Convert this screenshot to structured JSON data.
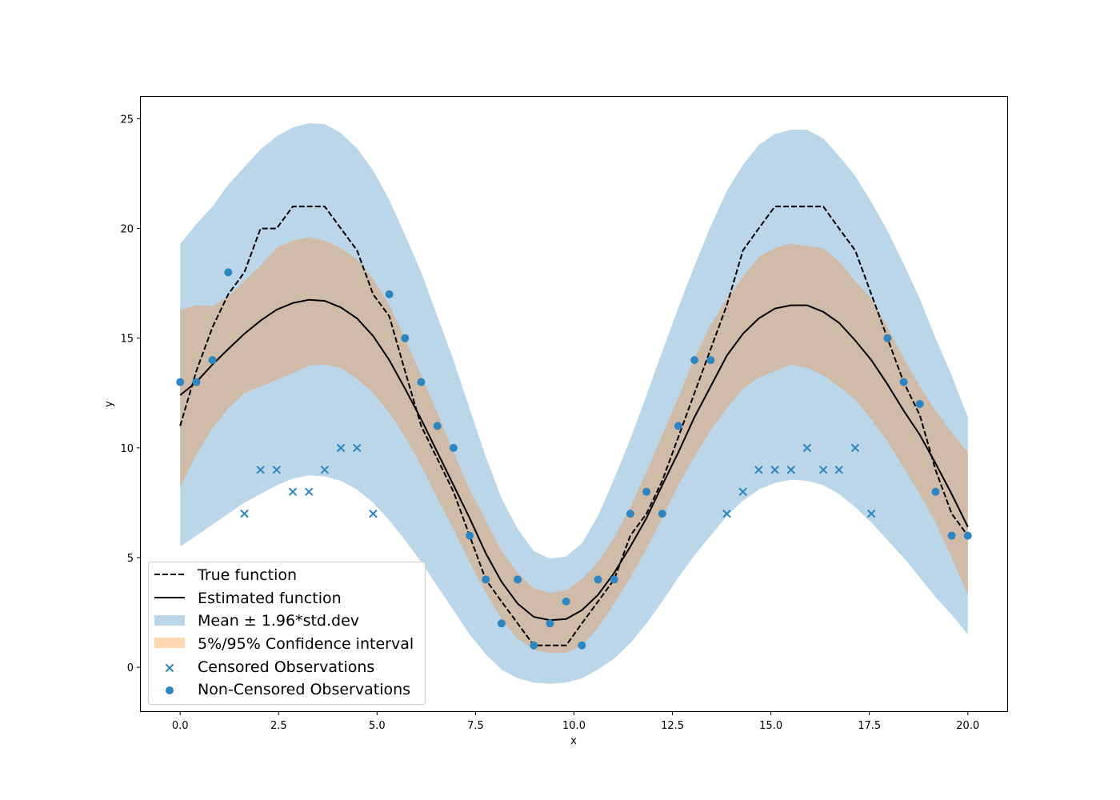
{
  "chart_data": {
    "type": "line",
    "title": "",
    "xlabel": "x",
    "ylabel": "y",
    "xlim": [
      -1.0,
      21.0
    ],
    "ylim": [
      -2.0,
      26.0
    ],
    "x_ticks": [
      "0.0",
      "2.5",
      "5.0",
      "7.5",
      "10.0",
      "12.5",
      "15.0",
      "17.5",
      "20.0"
    ],
    "y_ticks": [
      "0",
      "5",
      "10",
      "15",
      "20",
      "25"
    ],
    "legend_position": "lower-left",
    "colors": {
      "true_function": "#000000",
      "estimated_function": "#000000",
      "band_outer": "#bad6e8",
      "band_inner": "#cfbba8",
      "legend_orange_patch": "#ffd7b0",
      "observations": "#2e86c1"
    },
    "legend": [
      {
        "label": "True function",
        "style": "dashed-line"
      },
      {
        "label": "Estimated function",
        "style": "solid-line"
      },
      {
        "label": "Mean ± 1.96*std.dev",
        "style": "blue-patch"
      },
      {
        "label": "5%/95% Confidence interval",
        "style": "orange-patch"
      },
      {
        "label": "Censored Observations",
        "style": "x-marker"
      },
      {
        "label": "Non-Censored Observations",
        "style": "dot-marker"
      }
    ],
    "x": [
      0.0,
      0.41,
      0.82,
      1.22,
      1.63,
      2.04,
      2.45,
      2.86,
      3.27,
      3.67,
      4.08,
      4.49,
      4.9,
      5.31,
      5.71,
      6.12,
      6.53,
      6.94,
      7.35,
      7.76,
      8.16,
      8.57,
      8.98,
      9.39,
      9.8,
      10.2,
      10.61,
      11.02,
      11.43,
      11.84,
      12.24,
      12.65,
      13.06,
      13.47,
      13.88,
      14.29,
      14.69,
      15.1,
      15.51,
      15.92,
      16.33,
      16.73,
      17.14,
      17.55,
      17.96,
      18.37,
      18.78,
      19.18,
      19.59,
      20.0
    ],
    "series": [
      {
        "name": "True function",
        "values": [
          11.0,
          13.5,
          15.5,
          17.0,
          18.0,
          20.0,
          20.0,
          21.0,
          21.0,
          21.0,
          20.0,
          19.0,
          17.0,
          16.0,
          13.5,
          11.0,
          9.5,
          8.0,
          6.0,
          4.0,
          3.0,
          2.0,
          1.0,
          1.0,
          1.0,
          2.0,
          3.0,
          4.0,
          6.0,
          7.0,
          8.5,
          10.5,
          12.5,
          14.5,
          16.5,
          19.0,
          20.0,
          21.0,
          21.0,
          21.0,
          21.0,
          20.0,
          19.0,
          17.0,
          15.0,
          13.0,
          11.5,
          9.0,
          7.0,
          6.0
        ]
      },
      {
        "name": "Estimated function",
        "values": [
          12.4,
          13.0,
          13.8,
          14.5,
          15.2,
          15.8,
          16.3,
          16.6,
          16.75,
          16.7,
          16.4,
          15.9,
          15.1,
          14.0,
          12.7,
          11.3,
          9.8,
          8.3,
          6.8,
          5.2,
          3.9,
          2.9,
          2.3,
          2.15,
          2.2,
          2.6,
          3.3,
          4.3,
          5.5,
          6.8,
          8.3,
          9.8,
          11.4,
          12.8,
          14.2,
          15.2,
          15.9,
          16.35,
          16.5,
          16.5,
          16.2,
          15.7,
          14.9,
          14.0,
          12.9,
          11.7,
          10.6,
          9.3,
          7.9,
          6.4
        ]
      },
      {
        "name": "Mean ± 1.96*std.dev",
        "lower": [
          5.5,
          6.0,
          6.5,
          7.0,
          7.5,
          7.9,
          8.3,
          8.6,
          8.75,
          8.7,
          8.5,
          8.1,
          7.5,
          6.7,
          5.8,
          4.8,
          3.7,
          2.6,
          1.5,
          0.6,
          -0.1,
          -0.5,
          -0.7,
          -0.75,
          -0.7,
          -0.5,
          -0.1,
          0.4,
          1.1,
          2.0,
          3.0,
          4.1,
          5.1,
          6.0,
          6.9,
          7.6,
          8.1,
          8.4,
          8.55,
          8.5,
          8.3,
          7.9,
          7.3,
          6.6,
          5.8,
          5.0,
          4.1,
          3.2,
          2.4,
          1.5
        ],
        "upper": [
          19.3,
          20.2,
          21.0,
          22.0,
          22.8,
          23.6,
          24.2,
          24.6,
          24.8,
          24.75,
          24.35,
          23.65,
          22.65,
          21.3,
          19.7,
          18.0,
          16.0,
          14.0,
          11.8,
          9.6,
          7.7,
          6.3,
          5.3,
          4.95,
          5.05,
          5.65,
          6.9,
          8.6,
          10.4,
          12.4,
          14.4,
          16.4,
          18.3,
          20.1,
          21.7,
          22.9,
          23.8,
          24.3,
          24.5,
          24.5,
          24.1,
          23.3,
          22.4,
          21.2,
          19.9,
          18.4,
          16.8,
          15.0,
          13.3,
          11.4
        ]
      },
      {
        "name": "5%/95% Confidence interval",
        "lower": [
          8.2,
          9.7,
          10.9,
          11.8,
          12.5,
          12.8,
          13.1,
          13.4,
          13.75,
          13.8,
          13.65,
          13.15,
          12.5,
          11.6,
          10.5,
          9.2,
          7.7,
          6.3,
          4.8,
          3.4,
          2.2,
          1.3,
          0.8,
          0.65,
          0.65,
          1.0,
          1.8,
          2.9,
          4.1,
          5.4,
          6.8,
          8.3,
          9.6,
          10.8,
          11.8,
          12.7,
          13.2,
          13.5,
          13.8,
          13.65,
          13.3,
          12.8,
          12.2,
          11.3,
          10.3,
          9.1,
          7.9,
          6.6,
          5.0,
          3.3
        ],
        "upper": [
          16.3,
          16.5,
          16.45,
          16.9,
          17.6,
          18.3,
          19.1,
          19.45,
          19.6,
          19.45,
          19.1,
          18.6,
          17.7,
          16.5,
          15.0,
          13.3,
          11.6,
          9.8,
          8.1,
          6.7,
          5.3,
          4.3,
          3.6,
          3.4,
          3.5,
          4.0,
          4.8,
          5.9,
          7.3,
          8.9,
          10.6,
          12.3,
          14.1,
          15.6,
          16.8,
          17.8,
          18.7,
          19.1,
          19.3,
          19.2,
          19.1,
          18.5,
          17.6,
          16.8,
          15.5,
          14.1,
          12.8,
          11.7,
          10.7,
          9.8
        ]
      }
    ],
    "censored_observations": {
      "x": [
        1.63,
        2.04,
        2.45,
        2.86,
        3.27,
        3.67,
        4.08,
        4.49,
        4.9,
        13.88,
        14.29,
        14.69,
        15.1,
        15.51,
        15.92,
        16.33,
        16.73,
        17.14,
        17.55
      ],
      "y": [
        7,
        9,
        9,
        8,
        8,
        9,
        10,
        10,
        7,
        7,
        8,
        9,
        9,
        9,
        10,
        9,
        9,
        10,
        7
      ]
    },
    "non_censored_observations": {
      "x": [
        0.0,
        0.41,
        0.82,
        1.22,
        5.31,
        5.71,
        6.12,
        6.53,
        6.94,
        7.35,
        7.76,
        8.16,
        8.57,
        8.98,
        9.39,
        9.8,
        10.2,
        10.61,
        11.02,
        11.43,
        11.84,
        12.24,
        12.65,
        13.06,
        13.47,
        17.96,
        18.37,
        18.78,
        19.18,
        19.59,
        20.0
      ],
      "y": [
        13,
        13,
        14,
        18,
        17,
        15,
        13,
        11,
        10,
        6,
        4,
        2,
        4,
        1,
        2,
        3,
        1,
        4,
        4,
        7,
        8,
        7,
        11,
        14,
        14,
        15,
        13,
        12,
        8,
        6,
        6
      ]
    }
  }
}
